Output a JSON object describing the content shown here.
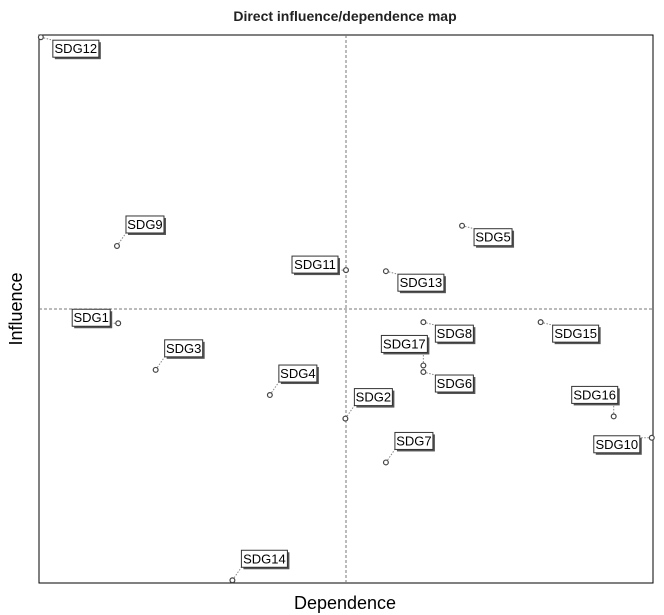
{
  "chart_data": {
    "type": "scatter",
    "title": "Direct influence/dependence map",
    "xlabel": "Dependence",
    "ylabel": "Influence",
    "xlim": [
      0,
      100
    ],
    "ylim": [
      0,
      100
    ],
    "quadrant_lines": {
      "x": 50,
      "y": 50
    },
    "grid": false,
    "points": [
      {
        "label": "SDG12",
        "x": 0.3,
        "y": 99.6,
        "label_pos": "below-right"
      },
      {
        "label": "SDG9",
        "x": 12.7,
        "y": 61.5,
        "label_pos": "above-right"
      },
      {
        "label": "SDG11",
        "x": 50.0,
        "y": 57.1,
        "label_pos": "left"
      },
      {
        "label": "SDG5",
        "x": 68.9,
        "y": 65.2,
        "label_pos": "below-right"
      },
      {
        "label": "SDG13",
        "x": 56.5,
        "y": 56.9,
        "label_pos": "below-right"
      },
      {
        "label": "SDG1",
        "x": 12.9,
        "y": 47.4,
        "label_pos": "left"
      },
      {
        "label": "SDG3",
        "x": 19.0,
        "y": 38.9,
        "label_pos": "above-right"
      },
      {
        "label": "SDG4",
        "x": 37.6,
        "y": 34.3,
        "label_pos": "above-right"
      },
      {
        "label": "SDG8",
        "x": 62.6,
        "y": 47.6,
        "label_pos": "below-right"
      },
      {
        "label": "SDG17",
        "x": 62.6,
        "y": 39.7,
        "label_pos": "above-left"
      },
      {
        "label": "SDG6",
        "x": 62.6,
        "y": 38.5,
        "label_pos": "below-right"
      },
      {
        "label": "SDG2",
        "x": 49.9,
        "y": 30.0,
        "label_pos": "above-right"
      },
      {
        "label": "SDG15",
        "x": 81.7,
        "y": 47.6,
        "label_pos": "below-right"
      },
      {
        "label": "SDG16",
        "x": 93.6,
        "y": 30.4,
        "label_pos": "above-left"
      },
      {
        "label": "SDG10",
        "x": 99.8,
        "y": 26.5,
        "label_pos": "below-left"
      },
      {
        "label": "SDG7",
        "x": 56.5,
        "y": 22.0,
        "label_pos": "above-right"
      },
      {
        "label": "SDG14",
        "x": 31.5,
        "y": 0.5,
        "label_pos": "above-right"
      }
    ]
  }
}
